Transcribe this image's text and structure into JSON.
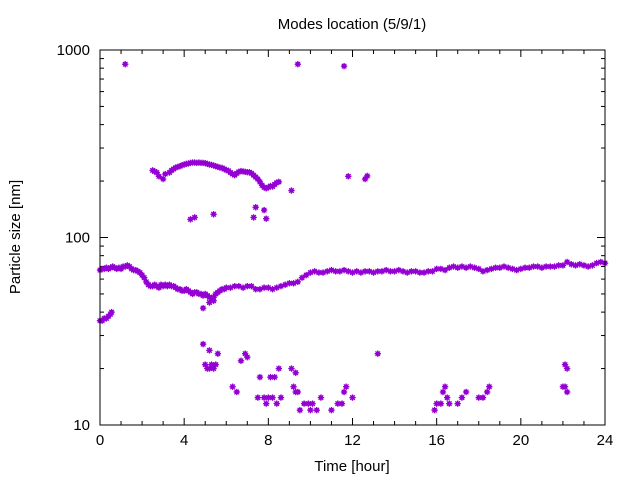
{
  "chart_data": {
    "type": "scatter",
    "title": "Modes location (5/9/1)",
    "xlabel": "Time [hour]",
    "ylabel": "Particle size [nm]",
    "xlim": [
      0,
      24
    ],
    "ylim": [
      10,
      1000
    ],
    "yscale": "log",
    "grid": false,
    "legend": "none",
    "x_ticks": [
      0,
      4,
      8,
      12,
      16,
      20,
      24
    ],
    "y_ticks": [
      10,
      100,
      1000
    ],
    "marker_color": "#9400d3",
    "series": [
      {
        "points": [
          [
            0.0,
            67
          ],
          [
            0.1,
            68
          ],
          [
            0.2,
            68
          ],
          [
            0.3,
            69
          ],
          [
            0.4,
            68
          ],
          [
            0.5,
            69
          ],
          [
            0.6,
            70
          ],
          [
            0.7,
            69
          ],
          [
            0.8,
            68
          ],
          [
            0.9,
            69
          ],
          [
            1.0,
            68
          ],
          [
            1.1,
            70
          ],
          [
            1.2,
            70
          ],
          [
            1.3,
            71
          ],
          [
            1.4,
            70
          ],
          [
            1.5,
            68
          ],
          [
            1.6,
            67
          ],
          [
            1.7,
            67
          ],
          [
            1.8,
            66
          ],
          [
            1.9,
            65
          ],
          [
            2.0,
            63
          ],
          [
            2.1,
            61
          ],
          [
            2.2,
            58
          ],
          [
            2.3,
            56
          ],
          [
            2.4,
            55
          ],
          [
            2.5,
            55
          ],
          [
            2.6,
            56
          ],
          [
            2.7,
            55
          ],
          [
            2.8,
            54
          ],
          [
            2.9,
            56
          ],
          [
            3.0,
            55
          ],
          [
            3.1,
            56
          ],
          [
            3.2,
            55
          ],
          [
            3.3,
            56
          ],
          [
            3.4,
            55
          ],
          [
            3.5,
            55
          ],
          [
            3.6,
            54
          ],
          [
            3.7,
            53
          ],
          [
            3.8,
            53
          ],
          [
            3.9,
            52
          ],
          [
            4.0,
            52
          ],
          [
            4.1,
            53
          ],
          [
            4.2,
            52
          ],
          [
            4.3,
            51
          ],
          [
            4.4,
            50
          ],
          [
            4.5,
            51
          ],
          [
            4.6,
            51
          ],
          [
            4.7,
            50
          ],
          [
            4.8,
            50
          ],
          [
            4.9,
            49
          ],
          [
            5.0,
            50
          ],
          [
            5.1,
            49
          ],
          [
            5.2,
            48
          ],
          [
            5.3,
            47
          ],
          [
            5.4,
            48
          ],
          [
            5.5,
            50
          ],
          [
            5.6,
            51
          ],
          [
            5.7,
            52
          ],
          [
            5.8,
            53
          ],
          [
            5.9,
            53
          ],
          [
            6.0,
            54
          ],
          [
            6.2,
            54
          ],
          [
            6.4,
            55
          ],
          [
            6.6,
            55
          ],
          [
            6.8,
            54
          ],
          [
            7.0,
            55
          ],
          [
            7.2,
            55
          ],
          [
            7.4,
            53
          ],
          [
            7.6,
            53
          ],
          [
            7.8,
            54
          ],
          [
            8.0,
            54
          ],
          [
            8.2,
            53
          ],
          [
            8.4,
            54
          ],
          [
            8.6,
            55
          ],
          [
            8.8,
            56
          ],
          [
            9.0,
            57
          ],
          [
            9.2,
            57
          ],
          [
            9.4,
            58
          ],
          [
            9.6,
            61
          ],
          [
            9.8,
            63
          ],
          [
            10.0,
            65
          ],
          [
            10.2,
            66
          ],
          [
            10.4,
            65
          ],
          [
            10.6,
            65
          ],
          [
            10.8,
            66
          ],
          [
            11.0,
            67
          ],
          [
            11.2,
            66
          ],
          [
            11.4,
            66
          ],
          [
            11.6,
            67
          ],
          [
            11.8,
            66
          ],
          [
            12.0,
            65
          ],
          [
            12.2,
            66
          ],
          [
            12.4,
            65
          ],
          [
            12.6,
            66
          ],
          [
            12.8,
            66
          ],
          [
            13.0,
            65
          ],
          [
            13.2,
            66
          ],
          [
            13.4,
            66
          ],
          [
            13.6,
            67
          ],
          [
            13.8,
            66
          ],
          [
            14.0,
            66
          ],
          [
            14.2,
            67
          ],
          [
            14.4,
            66
          ],
          [
            14.6,
            65
          ],
          [
            14.8,
            66
          ],
          [
            15.0,
            66
          ],
          [
            15.2,
            65
          ],
          [
            15.4,
            65
          ],
          [
            15.6,
            66
          ],
          [
            15.8,
            66
          ],
          [
            16.0,
            68
          ],
          [
            16.2,
            68
          ],
          [
            16.4,
            67
          ],
          [
            16.6,
            69
          ],
          [
            16.8,
            70
          ],
          [
            17.0,
            69
          ],
          [
            17.2,
            70
          ],
          [
            17.4,
            69
          ],
          [
            17.6,
            70
          ],
          [
            17.8,
            69
          ],
          [
            18.0,
            68
          ],
          [
            18.2,
            66
          ],
          [
            18.4,
            67
          ],
          [
            18.6,
            68
          ],
          [
            18.8,
            69
          ],
          [
            19.0,
            69
          ],
          [
            19.2,
            70
          ],
          [
            19.4,
            69
          ],
          [
            19.6,
            68
          ],
          [
            19.8,
            67
          ],
          [
            20.0,
            68
          ],
          [
            20.2,
            69
          ],
          [
            20.4,
            69
          ],
          [
            20.6,
            70
          ],
          [
            20.8,
            70
          ],
          [
            21.0,
            69
          ],
          [
            21.2,
            70
          ],
          [
            21.4,
            70
          ],
          [
            21.6,
            70
          ],
          [
            21.8,
            71
          ],
          [
            22.0,
            71
          ],
          [
            22.2,
            74
          ],
          [
            22.4,
            72
          ],
          [
            22.6,
            71
          ],
          [
            22.8,
            72
          ],
          [
            23.0,
            71
          ],
          [
            23.2,
            70
          ],
          [
            23.4,
            71
          ],
          [
            23.6,
            73
          ],
          [
            23.8,
            74
          ],
          [
            24.0,
            73
          ],
          [
            0.0,
            36
          ],
          [
            0.1,
            36
          ],
          [
            0.2,
            37
          ],
          [
            0.3,
            37
          ],
          [
            0.4,
            38
          ],
          [
            0.5,
            39
          ],
          [
            0.55,
            40
          ],
          [
            1.2,
            840
          ],
          [
            9.4,
            840
          ],
          [
            11.6,
            820
          ],
          [
            2.5,
            228
          ],
          [
            2.6,
            225
          ],
          [
            2.7,
            222
          ],
          [
            2.8,
            212
          ],
          [
            3.0,
            205
          ],
          [
            3.1,
            218
          ],
          [
            3.3,
            222
          ],
          [
            3.4,
            228
          ],
          [
            3.5,
            232
          ],
          [
            3.6,
            236
          ],
          [
            3.7,
            238
          ],
          [
            3.8,
            240
          ],
          [
            3.9,
            243
          ],
          [
            4.0,
            245
          ],
          [
            4.1,
            247
          ],
          [
            4.2,
            248
          ],
          [
            4.3,
            250
          ],
          [
            4.4,
            251
          ],
          [
            4.5,
            251
          ],
          [
            4.6,
            250
          ],
          [
            4.7,
            251
          ],
          [
            4.8,
            250
          ],
          [
            4.9,
            250
          ],
          [
            5.0,
            249
          ],
          [
            5.1,
            247
          ],
          [
            5.2,
            245
          ],
          [
            5.3,
            244
          ],
          [
            5.4,
            242
          ],
          [
            5.5,
            240
          ],
          [
            5.6,
            238
          ],
          [
            5.7,
            236
          ],
          [
            5.8,
            235
          ],
          [
            5.9,
            232
          ],
          [
            6.0,
            229
          ],
          [
            6.1,
            227
          ],
          [
            6.2,
            222
          ],
          [
            6.3,
            218
          ],
          [
            6.4,
            215
          ],
          [
            6.5,
            220
          ],
          [
            6.6,
            224
          ],
          [
            6.7,
            226
          ],
          [
            6.8,
            225
          ],
          [
            6.9,
            224
          ],
          [
            7.0,
            223
          ],
          [
            7.1,
            223
          ],
          [
            7.2,
            220
          ],
          [
            7.3,
            215
          ],
          [
            7.4,
            210
          ],
          [
            7.5,
            205
          ],
          [
            7.6,
            198
          ],
          [
            7.7,
            190
          ],
          [
            7.8,
            185
          ],
          [
            7.9,
            183
          ],
          [
            8.0,
            185
          ],
          [
            8.1,
            188
          ],
          [
            8.2,
            187
          ],
          [
            8.3,
            192
          ],
          [
            8.4,
            196
          ],
          [
            8.5,
            198
          ],
          [
            9.1,
            178
          ],
          [
            11.8,
            212
          ],
          [
            12.6,
            205
          ],
          [
            12.7,
            213
          ],
          [
            4.3,
            125
          ],
          [
            4.5,
            128
          ],
          [
            5.4,
            133
          ],
          [
            7.3,
            128
          ],
          [
            7.4,
            145
          ],
          [
            7.8,
            140
          ],
          [
            7.9,
            126
          ],
          [
            4.9,
            42
          ],
          [
            5.2,
            45
          ],
          [
            5.4,
            46
          ],
          [
            4.9,
            27
          ],
          [
            5.2,
            25
          ],
          [
            5.6,
            24
          ],
          [
            5.0,
            21
          ],
          [
            5.1,
            20
          ],
          [
            5.2,
            20
          ],
          [
            5.3,
            21
          ],
          [
            5.4,
            20
          ],
          [
            5.5,
            21
          ],
          [
            13.2,
            24
          ],
          [
            6.7,
            22
          ],
          [
            6.9,
            24
          ],
          [
            7.0,
            23
          ],
          [
            7.6,
            18
          ],
          [
            8.1,
            18
          ],
          [
            8.3,
            18
          ],
          [
            8.5,
            20
          ],
          [
            9.1,
            20
          ],
          [
            9.3,
            19
          ],
          [
            22.1,
            21
          ],
          [
            22.2,
            20
          ],
          [
            6.3,
            16
          ],
          [
            6.5,
            15
          ],
          [
            7.5,
            14
          ],
          [
            7.8,
            14
          ],
          [
            7.9,
            13
          ],
          [
            8.0,
            14
          ],
          [
            8.2,
            14
          ],
          [
            8.4,
            13
          ],
          [
            8.6,
            14
          ],
          [
            9.2,
            16
          ],
          [
            9.3,
            15
          ],
          [
            9.4,
            15
          ],
          [
            9.5,
            12
          ],
          [
            9.7,
            13
          ],
          [
            9.9,
            13
          ],
          [
            10.0,
            12
          ],
          [
            10.1,
            13
          ],
          [
            10.3,
            12
          ],
          [
            10.5,
            14
          ],
          [
            11.0,
            12
          ],
          [
            11.3,
            13
          ],
          [
            11.5,
            13
          ],
          [
            11.6,
            15
          ],
          [
            11.7,
            16
          ],
          [
            12.0,
            14
          ],
          [
            15.9,
            12
          ],
          [
            16.0,
            13
          ],
          [
            16.2,
            13
          ],
          [
            16.3,
            15
          ],
          [
            16.4,
            16
          ],
          [
            16.5,
            14
          ],
          [
            16.6,
            13
          ],
          [
            17.0,
            13
          ],
          [
            17.2,
            14
          ],
          [
            17.4,
            15
          ],
          [
            18.0,
            14
          ],
          [
            18.2,
            14
          ],
          [
            18.4,
            15
          ],
          [
            18.5,
            16
          ],
          [
            22.0,
            16
          ],
          [
            22.1,
            16
          ],
          [
            22.2,
            15
          ]
        ]
      }
    ]
  }
}
